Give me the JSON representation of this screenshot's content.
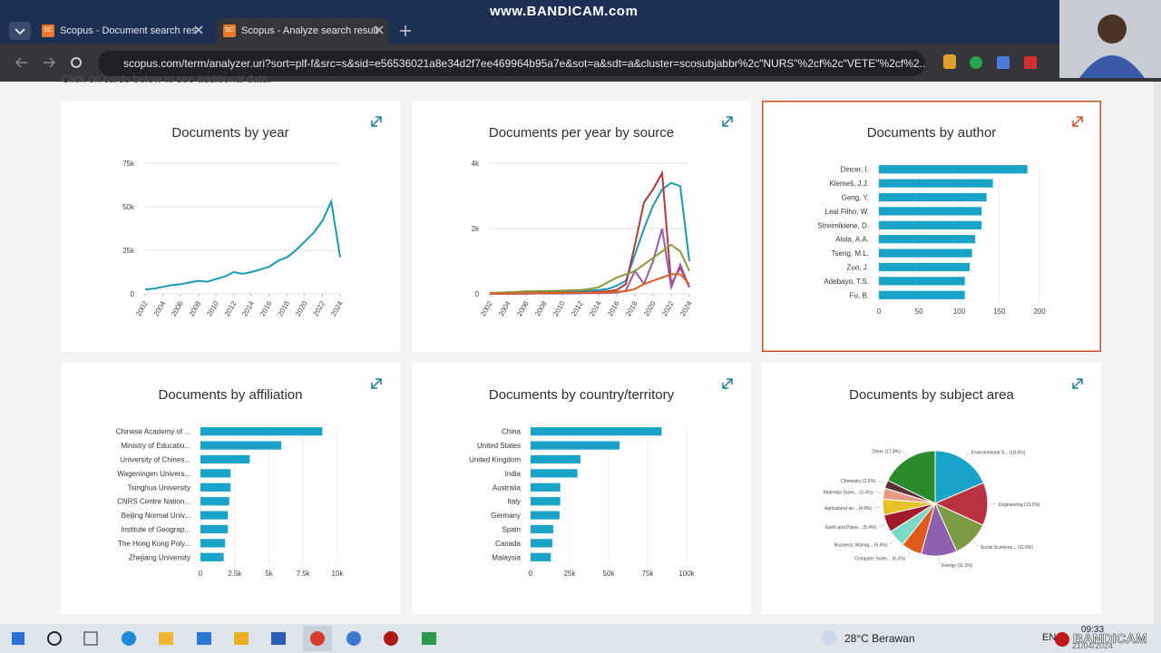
{
  "browser": {
    "tabs": [
      {
        "icon": "SC",
        "title": "Scopus - Document search res"
      },
      {
        "icon": "SC",
        "title": "Scopus - Analyze search result"
      }
    ],
    "url": "scopus.com/term/analyzer.uri?sort=plf-f&src=s&sid=e56536021a8e34d2f7ee469964b95a7e&sot=a&sdt=a&cluster=scosubjabbr%2c\"NURS\"%2cf%2c\"VETE\"%2cf%2...",
    "watermark": "www.BANDICAM.com"
  },
  "page": {
    "hint": "Click on cards below to see additional data."
  },
  "cards": [
    {
      "type": "line",
      "title": "Documents by year",
      "color": "#1a9bb5",
      "grid": true,
      "x": [
        2002,
        2003,
        2004,
        2005,
        2006,
        2007,
        2008,
        2009,
        2010,
        2011,
        2012,
        2013,
        2014,
        2015,
        2016,
        2017,
        2018,
        2019,
        2020,
        2021,
        2022,
        2023,
        2024
      ],
      "values": [
        2500,
        3000,
        4000,
        5000,
        5500,
        6500,
        7500,
        7000,
        8500,
        10000,
        12500,
        11500,
        12500,
        14000,
        15500,
        19000,
        21000,
        25000,
        30000,
        35000,
        42000,
        53000,
        21000
      ],
      "xlim": [
        2002,
        2024
      ],
      "xticks": [
        2002,
        2004,
        2006,
        2008,
        2010,
        2012,
        2014,
        2016,
        2018,
        2020,
        2022,
        2024
      ],
      "ylim": [
        0,
        75000
      ],
      "yticks": [
        0,
        {
          "value": 25000,
          "label": "25k"
        },
        {
          "value": 50000,
          "label": "50k"
        },
        {
          "value": 75000,
          "label": "75k"
        }
      ]
    },
    {
      "type": "line",
      "title": "Documents per year by source",
      "grid": true,
      "x": [
        2002,
        2003,
        2004,
        2005,
        2006,
        2007,
        2008,
        2009,
        2010,
        2011,
        2012,
        2013,
        2014,
        2015,
        2016,
        2017,
        2018,
        2019,
        2020,
        2021,
        2022,
        2023,
        2024
      ],
      "series": [
        {
          "color": "#1a9bb5",
          "values": [
            20,
            30,
            40,
            40,
            50,
            50,
            60,
            60,
            70,
            80,
            90,
            100,
            120,
            150,
            250,
            400,
            1200,
            2000,
            2700,
            3200,
            3400,
            3300,
            1000
          ]
        },
        {
          "color": "#b23a3a",
          "values": [
            10,
            10,
            20,
            20,
            20,
            20,
            30,
            30,
            30,
            40,
            40,
            50,
            60,
            80,
            120,
            300,
            1500,
            2800,
            3200,
            3700,
            300,
            800,
            200
          ]
        },
        {
          "color": "#9b59b6",
          "values": [
            0,
            0,
            0,
            0,
            0,
            10,
            10,
            10,
            10,
            10,
            20,
            20,
            20,
            30,
            40,
            100,
            700,
            300,
            1000,
            2000,
            200,
            900,
            200
          ]
        },
        {
          "color": "#8a9a3b",
          "values": [
            30,
            40,
            50,
            60,
            80,
            80,
            90,
            90,
            100,
            110,
            120,
            150,
            200,
            350,
            500,
            600,
            700,
            900,
            1100,
            1300,
            1500,
            1300,
            700
          ]
        },
        {
          "color": "#e06020",
          "values": [
            10,
            10,
            10,
            10,
            20,
            20,
            20,
            20,
            30,
            30,
            30,
            40,
            40,
            50,
            60,
            80,
            150,
            300,
            400,
            500,
            600,
            600,
            300
          ]
        }
      ],
      "xlim": [
        2002,
        2024
      ],
      "xticks": [
        2002,
        2004,
        2006,
        2008,
        2010,
        2012,
        2014,
        2016,
        2018,
        2020,
        2022,
        2024
      ],
      "ylim": [
        0,
        4000
      ],
      "yticks": [
        0,
        {
          "value": 2000,
          "label": "2k"
        },
        {
          "value": 4000,
          "label": "4k"
        }
      ]
    },
    {
      "type": "hbar",
      "title": "Documents by author",
      "color": "#1aa3c9",
      "grid": true,
      "categories": [
        "Dincer, I.",
        "Klemeš, J.J.",
        "Geng, Y.",
        "Leal Filho, W.",
        "Streimikiene, D.",
        "Alola, A.A.",
        "Tseng, M.L.",
        "Zuo, J.",
        "Adebayo, T.S.",
        "Fu, B."
      ],
      "values": [
        185,
        142,
        134,
        128,
        128,
        120,
        116,
        113,
        107,
        107
      ],
      "xlim": [
        0,
        200
      ],
      "xticks": [
        0,
        50,
        100,
        150,
        200
      ]
    },
    {
      "type": "hbar",
      "title": "Documents by affiliation",
      "color": "#1aa3c9",
      "grid": true,
      "categories": [
        "Chinese Academy of ...",
        "Ministry of Educatio...",
        "University of Chines...",
        "Wageningen Univers...",
        "Tsinghua University",
        "CNRS Centre Nation...",
        "Beijing Normal Univ...",
        "Institute of Geograp...",
        "The Hong Kong Poly...",
        "Zhejiang University"
      ],
      "values": [
        8900,
        5900,
        3600,
        2200,
        2200,
        2100,
        2000,
        2000,
        1800,
        1700
      ],
      "xlim": [
        0,
        10000
      ],
      "xticks": [
        0,
        {
          "value": 2500,
          "label": "2.5k"
        },
        {
          "value": 5000,
          "label": "5k"
        },
        {
          "value": 7500,
          "label": "7.5k"
        },
        {
          "value": 10000,
          "label": "10k"
        }
      ]
    },
    {
      "type": "hbar",
      "title": "Documents by country/territory",
      "color": "#1aa3c9",
      "grid": true,
      "categories": [
        "China",
        "United States",
        "United Kingdom",
        "India",
        "Australia",
        "Italy",
        "Germany",
        "Spain",
        "Canada",
        "Malaysia"
      ],
      "values": [
        84000,
        57000,
        32000,
        30000,
        19000,
        19000,
        18500,
        14500,
        14000,
        13000
      ],
      "xlim": [
        0,
        100000
      ],
      "xticks": [
        0,
        {
          "value": 25000,
          "label": "25k"
        },
        {
          "value": 50000,
          "label": "50k"
        },
        {
          "value": 75000,
          "label": "75k"
        },
        {
          "value": 100000,
          "label": "100k"
        }
      ]
    },
    {
      "type": "pie",
      "title": "Documents by subject area",
      "categories": [
        "Environmental S... (18.6%)",
        "Engineering (13.2%)",
        "Social Sciences... (11.5%)",
        "Energy (11.0%)",
        "Computer Scien... (6.3%)",
        "Business, Manag... (5.4%)",
        "Earth and Plane... (5.4%)",
        "Agricultural an... (4.9%)",
        "Materials Scien... (3.4%)",
        "Chemistry (2.5%)",
        "Other (17.8%)"
      ],
      "values": [
        18.6,
        13.2,
        11.5,
        11.0,
        6.3,
        5.4,
        5.4,
        4.9,
        3.4,
        2.5,
        17.8
      ],
      "colors": [
        "#1aa3c9",
        "#b83240",
        "#7d9a45",
        "#8e5fae",
        "#e05a1a",
        "#7bd9c7",
        "#a31b2b",
        "#e6c229",
        "#e79a84",
        "#5a3030",
        "#2b8a2b"
      ]
    }
  ],
  "taskbar": {
    "weather": "28°C Berawan",
    "lang": "EN",
    "time": "09:33",
    "date": "21/04/2024",
    "recorder": "BANDICAM"
  }
}
